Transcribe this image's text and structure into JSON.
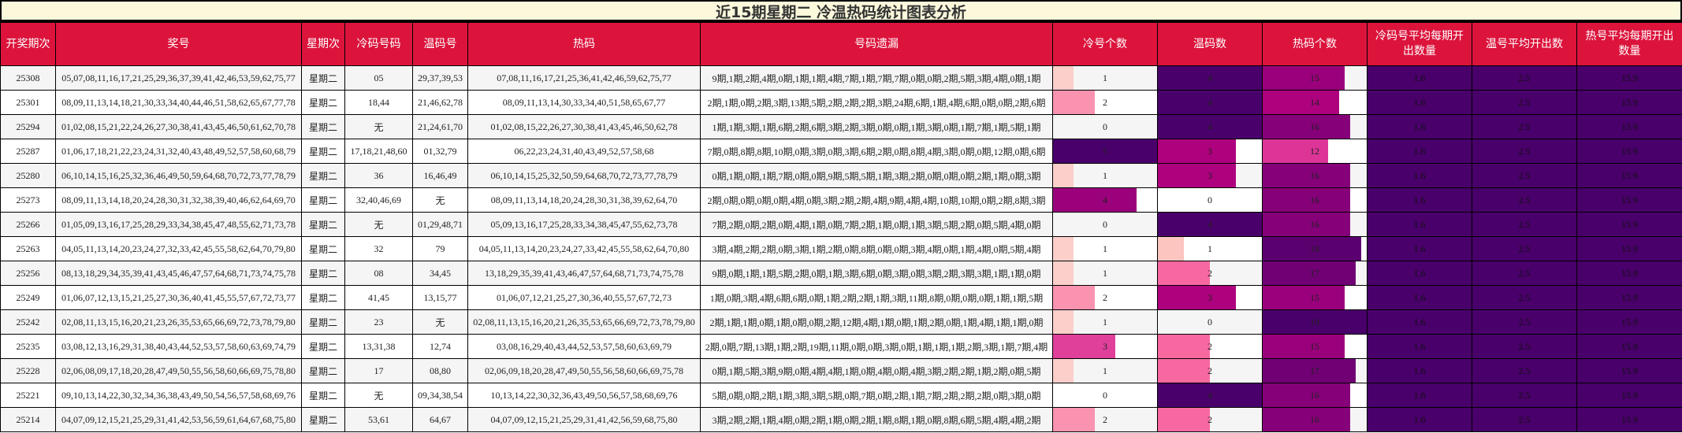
{
  "title": "近15期星期二 冷温热码统计图表分析",
  "headers": [
    "开奖期次",
    "奖号",
    "星期次",
    "冷码号码",
    "温码号",
    "热码",
    "号码遗漏",
    "冷号个数",
    "温码数",
    "热码个数",
    "冷码号平均每期开出数量",
    "温号平均开出数",
    "热号平均每期开出数量"
  ],
  "bar_max": {
    "cold": 5,
    "warm": 4,
    "hot": 19
  },
  "colors": {
    "header_bg": "#dc143c",
    "title_bg": "#fbf8dc",
    "cold": {
      "1": "#fccfca",
      "2": "#f993b0",
      "3": "#e0409a",
      "4": "#9a017b",
      "5": "#49006a"
    },
    "warm": {
      "1": "#fdc5c0",
      "2": "#f768a1",
      "3": "#ae017e",
      "4": "#49006a"
    },
    "hot": {
      "12": "#dd3497",
      "14": "#ae017e",
      "15": "#9a007b",
      "16": "#860079",
      "17": "#700074",
      "18": "#5b006f",
      "19": "#49006a"
    },
    "avg_bg": "#49006a"
  },
  "rows": [
    {
      "period": "25308",
      "numbers": "05,07,08,11,16,17,21,25,29,36,37,39,41,42,46,53,59,62,75,77",
      "weekday": "星期二",
      "cold": "05",
      "warm": "29,37,39,53",
      "hot": "07,08,11,16,17,21,25,36,41,42,46,59,62,75,77",
      "missing": "9期,1期,2期,4期,0期,1期,1期,4期,7期,1期,7期,7期,0期,0期,2期,5期,3期,4期,0期,1期",
      "cold_count": 1,
      "warm_count": 4,
      "hot_count": 15,
      "cold_avg": "1.6",
      "warm_avg": "2.5",
      "hot_avg": "15.9"
    },
    {
      "period": "25301",
      "numbers": "08,09,11,13,14,18,21,30,33,34,40,44,46,51,58,62,65,67,77,78",
      "weekday": "星期二",
      "cold": "18,44",
      "warm": "21,46,62,78",
      "hot": "08,09,11,13,14,30,33,34,40,51,58,65,67,77",
      "missing": "2期,1期,0期,2期,3期,13期,5期,2期,2期,2期,3期,24期,6期,1期,4期,6期,0期,0期,2期,6期",
      "cold_count": 2,
      "warm_count": 4,
      "hot_count": 14,
      "cold_avg": "1.6",
      "warm_avg": "2.5",
      "hot_avg": "15.9"
    },
    {
      "period": "25294",
      "numbers": "01,02,08,15,21,22,24,26,27,30,38,41,43,45,46,50,61,62,70,78",
      "weekday": "星期二",
      "cold": "无",
      "warm": "21,24,61,70",
      "hot": "01,02,08,15,22,26,27,30,38,41,43,45,46,50,62,78",
      "missing": "1期,1期,3期,1期,6期,2期,6期,3期,2期,3期,0期,0期,1期,3期,0期,1期,7期,1期,5期,1期",
      "cold_count": 0,
      "warm_count": 4,
      "hot_count": 16,
      "cold_avg": "1.6",
      "warm_avg": "2.5",
      "hot_avg": "15.9"
    },
    {
      "period": "25287",
      "numbers": "01,06,17,18,21,22,23,24,31,32,40,43,48,49,52,57,58,60,68,79",
      "weekday": "星期二",
      "cold": "17,18,21,48,60",
      "warm": "01,32,79",
      "hot": "06,22,23,24,31,40,43,49,52,57,58,68",
      "missing": "7期,0期,8期,8期,10期,0期,3期,0期,3期,6期,2期,0期,8期,4期,3期,0期,0期,12期,0期,6期",
      "cold_count": 5,
      "warm_count": 3,
      "hot_count": 12,
      "cold_avg": "1.6",
      "warm_avg": "2.5",
      "hot_avg": "15.9"
    },
    {
      "period": "25280",
      "numbers": "06,10,14,15,16,25,32,36,46,49,50,59,64,68,70,72,73,77,78,79",
      "weekday": "星期二",
      "cold": "36",
      "warm": "16,46,49",
      "hot": "06,10,14,15,25,32,50,59,64,68,70,72,73,77,78,79",
      "missing": "0期,1期,0期,1期,7期,0期,0期,9期,5期,5期,1期,3期,2期,0期,0期,0期,2期,1期,0期,3期",
      "cold_count": 1,
      "warm_count": 3,
      "hot_count": 16,
      "cold_avg": "1.6",
      "warm_avg": "2.5",
      "hot_avg": "15.9"
    },
    {
      "period": "25273",
      "numbers": "08,09,11,13,14,18,20,24,28,30,31,32,38,39,40,46,62,64,69,70",
      "weekday": "星期二",
      "cold": "32,40,46,69",
      "warm": "无",
      "hot": "08,09,11,13,14,18,20,24,28,30,31,38,39,62,64,70",
      "missing": "2期,0期,0期,0期,0期,4期,0期,3期,2期,2期,4期,9期,4期,4期,10期,10期,0期,2期,8期,3期",
      "cold_count": 4,
      "warm_count": 0,
      "hot_count": 16,
      "cold_avg": "1.6",
      "warm_avg": "2.5",
      "hot_avg": "15.9"
    },
    {
      "period": "25266",
      "numbers": "01,05,09,13,16,17,25,28,29,33,34,38,45,47,48,55,62,71,73,78",
      "weekday": "星期二",
      "cold": "无",
      "warm": "01,29,48,71",
      "hot": "05,09,13,16,17,25,28,33,34,38,45,47,55,62,73,78",
      "missing": "7期,2期,0期,2期,0期,4期,1期,0期,7期,2期,1期,0期,1期,3期,5期,2期,0期,5期,4期,0期",
      "cold_count": 0,
      "warm_count": 4,
      "hot_count": 16,
      "cold_avg": "1.6",
      "warm_avg": "2.5",
      "hot_avg": "15.9"
    },
    {
      "period": "25263",
      "numbers": "04,05,11,13,14,20,23,24,27,32,33,42,45,55,58,62,64,70,79,80",
      "weekday": "星期二",
      "cold": "32",
      "warm": "79",
      "hot": "04,05,11,13,14,20,23,24,27,33,42,45,55,58,62,64,70,80",
      "missing": "3期,4期,2期,2期,0期,3期,1期,2期,0期,8期,0期,0期,3期,4期,0期,1期,4期,0期,5期,4期",
      "cold_count": 1,
      "warm_count": 1,
      "hot_count": 18,
      "cold_avg": "1.6",
      "warm_avg": "2.5",
      "hot_avg": "15.9"
    },
    {
      "period": "25256",
      "numbers": "08,13,18,29,34,35,39,41,43,45,46,47,57,64,68,71,73,74,75,78",
      "weekday": "星期二",
      "cold": "08",
      "warm": "34,45",
      "hot": "13,18,29,35,39,41,43,46,47,57,64,68,71,73,74,75,78",
      "missing": "9期,0期,1期,1期,5期,2期,0期,1期,3期,6期,0期,3期,0期,3期,2期,3期,3期,1期,1期,0期",
      "cold_count": 1,
      "warm_count": 2,
      "hot_count": 17,
      "cold_avg": "1.6",
      "warm_avg": "2.5",
      "hot_avg": "15.9"
    },
    {
      "period": "25249",
      "numbers": "01,06,07,12,13,15,21,25,27,30,36,40,41,45,55,57,67,72,73,77",
      "weekday": "星期二",
      "cold": "41,45",
      "warm": "13,15,77",
      "hot": "01,06,07,12,21,25,27,30,36,40,55,57,67,72,73",
      "missing": "1期,0期,3期,4期,6期,6期,0期,1期,2期,2期,1期,3期,11期,8期,0期,0期,0期,1期,1期,5期",
      "cold_count": 2,
      "warm_count": 3,
      "hot_count": 15,
      "cold_avg": "1.6",
      "warm_avg": "2.5",
      "hot_avg": "15.9"
    },
    {
      "period": "25242",
      "numbers": "02,08,11,13,15,16,20,21,23,26,35,53,65,66,69,72,73,78,79,80",
      "weekday": "星期二",
      "cold": "23",
      "warm": "无",
      "hot": "02,08,11,13,15,16,20,21,26,35,53,65,66,69,72,73,78,79,80",
      "missing": "2期,1期,1期,0期,1期,0期,0期,2期,12期,4期,1期,0期,1期,2期,0期,1期,4期,1期,1期,0期",
      "cold_count": 1,
      "warm_count": 0,
      "hot_count": 19,
      "cold_avg": "1.6",
      "warm_avg": "2.5",
      "hot_avg": "15.9"
    },
    {
      "period": "25235",
      "numbers": "03,08,12,13,16,29,31,38,40,43,44,52,53,57,58,60,63,69,74,79",
      "weekday": "星期二",
      "cold": "13,31,38",
      "warm": "12,74",
      "hot": "03,08,16,29,40,43,44,52,53,57,58,60,63,69,79",
      "missing": "2期,0期,7期,13期,1期,2期,19期,11期,0期,0期,3期,0期,1期,1期,1期,2期,3期,1期,7期,4期",
      "cold_count": 3,
      "warm_count": 2,
      "hot_count": 15,
      "cold_avg": "1.6",
      "warm_avg": "2.5",
      "hot_avg": "15.9"
    },
    {
      "period": "25228",
      "numbers": "02,06,08,09,17,18,20,28,47,49,50,55,56,58,60,66,69,75,78,80",
      "weekday": "星期二",
      "cold": "17",
      "warm": "08,80",
      "hot": "02,06,09,18,20,28,47,49,50,55,56,58,60,66,69,75,78",
      "missing": "0期,1期,5期,3期,9期,0期,4期,4期,1期,0期,4期,0期,4期,3期,2期,2期,1期,2期,0期,5期",
      "cold_count": 1,
      "warm_count": 2,
      "hot_count": 17,
      "cold_avg": "1.6",
      "warm_avg": "2.5",
      "hot_avg": "15.9"
    },
    {
      "period": "25221",
      "numbers": "09,10,13,14,22,30,32,34,36,38,43,49,50,54,56,57,58,68,69,76",
      "weekday": "星期二",
      "cold": "无",
      "warm": "09,34,38,54",
      "hot": "10,13,14,22,30,32,36,43,49,50,56,57,58,68,69,76",
      "missing": "5期,0期,0期,2期,1期,3期,3期,5期,0期,7期,0期,2期,1期,7期,2期,2期,2期,0期,3期,0期",
      "cold_count": 0,
      "warm_count": 4,
      "hot_count": 16,
      "cold_avg": "1.6",
      "warm_avg": "2.5",
      "hot_avg": "15.9"
    },
    {
      "period": "25214",
      "numbers": "04,07,09,12,15,21,25,29,31,41,42,53,56,59,61,64,67,68,75,80",
      "weekday": "星期二",
      "cold": "53,61",
      "warm": "64,67",
      "hot": "04,07,09,12,15,21,25,29,31,41,42,56,59,68,75,80",
      "missing": "3期,2期,2期,1期,4期,0期,2期,1期,0期,2期,1期,8期,1期,0期,8期,6期,5期,4期,4期,2期",
      "cold_count": 2,
      "warm_count": 2,
      "hot_count": 16,
      "cold_avg": "1.6",
      "warm_avg": "2.5",
      "hot_avg": "15.9"
    }
  ]
}
